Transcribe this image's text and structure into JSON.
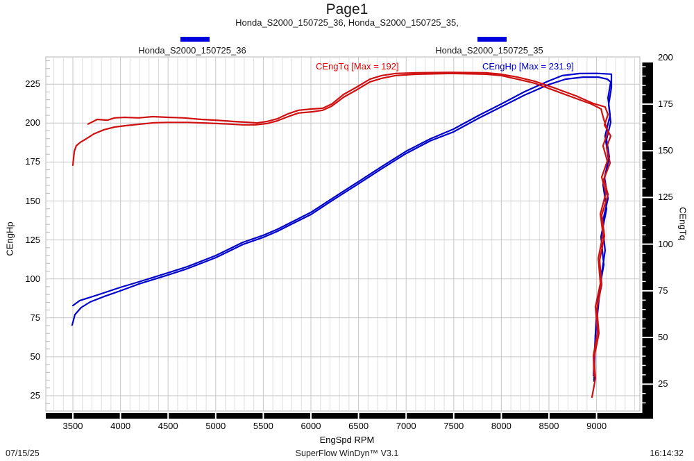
{
  "page": {
    "title": "Page1",
    "subtitle": "Honda_S2000_150725_36, Honda_S2000_150725_35,",
    "footer": {
      "date": "07/15/25",
      "app": "SuperFlow WinDyn™ V3.1",
      "time": "16:14:32"
    }
  },
  "legends": [
    {
      "label": "Honda_S2000_150725_36",
      "color": "#0000dd"
    },
    {
      "label": "Honda_S2000_150725_35",
      "color": "#0000dd"
    }
  ],
  "annotations": [
    {
      "text": "CEngTq [Max = 192]",
      "color": "#e00000"
    },
    {
      "text": "CEngHp [Max = 231.9]",
      "color": "#0000cc"
    }
  ],
  "chart_data": {
    "type": "line",
    "xlabel": "EngSpd RPM",
    "x_ticks": [
      3500,
      4000,
      4500,
      5000,
      5500,
      6000,
      6500,
      7000,
      7500,
      8000,
      8500,
      9000
    ],
    "x_minor_step": 100,
    "x_range": [
      3215,
      9455
    ],
    "left_axis": {
      "label": "CEngHp",
      "ticks": [
        225,
        200,
        175,
        150,
        125,
        100,
        75,
        50,
        25
      ],
      "minor_step": 5
    },
    "right_axis": {
      "label": "CEngTq",
      "ticks": [
        200,
        175,
        150,
        125,
        100,
        75,
        50,
        25
      ],
      "minor_step": 5
    },
    "colors": {
      "hp": "#0000cc",
      "tq": "#d01010",
      "grid_minor": "#dedede",
      "grid_major": "#c6c6c6",
      "frame": "#b4b4b4",
      "axis_bar": "#000000"
    },
    "series": [
      {
        "name": "Honda_S2000_150725_36 CEngHp",
        "axis": "hp",
        "color": "#0000cc",
        "max": 231.9,
        "points": [
          [
            3500,
            82.9
          ],
          [
            3573,
            86.1
          ],
          [
            3755,
            89.6
          ],
          [
            3996,
            94.5
          ],
          [
            4192,
            98.1
          ],
          [
            4499,
            103.9
          ],
          [
            4703,
            107.9
          ],
          [
            5002,
            115.0
          ],
          [
            5286,
            123.5
          ],
          [
            5497,
            127.9
          ],
          [
            5650,
            131.9
          ],
          [
            5796,
            136.4
          ],
          [
            6000,
            142.7
          ],
          [
            6233,
            152.0
          ],
          [
            6496,
            162.3
          ],
          [
            6744,
            172.1
          ],
          [
            6999,
            181.9
          ],
          [
            7254,
            189.9
          ],
          [
            7495,
            196.1
          ],
          [
            7764,
            205.0
          ],
          [
            7998,
            212.2
          ],
          [
            8245,
            220.2
          ],
          [
            8493,
            226.9
          ],
          [
            8639,
            230.5
          ],
          [
            8821,
            231.8
          ],
          [
            9003,
            231.9
          ],
          [
            9156,
            231.4
          ],
          [
            9156,
            222.9
          ],
          [
            9127,
            211.8
          ],
          [
            9149,
            200.6
          ],
          [
            9105,
            189.5
          ],
          [
            9134,
            178.3
          ],
          [
            9083,
            165.0
          ],
          [
            9120,
            151.6
          ],
          [
            9061,
            136.0
          ],
          [
            9090,
            118.2
          ],
          [
            9047,
            100.4
          ],
          [
            9018,
            82.5
          ],
          [
            8988,
            64.7
          ],
          [
            8981,
            49.1
          ],
          [
            8974,
            34.4
          ]
        ]
      },
      {
        "name": "Honda_S2000_150725_35 CEngHp",
        "axis": "hp",
        "color": "#0000cc",
        "max": 229.5,
        "points": [
          [
            3493,
            70.4
          ],
          [
            3522,
            77.1
          ],
          [
            3587,
            81.6
          ],
          [
            3682,
            85.2
          ],
          [
            3828,
            88.7
          ],
          [
            3996,
            92.3
          ],
          [
            4192,
            96.7
          ],
          [
            4499,
            102.5
          ],
          [
            4703,
            106.6
          ],
          [
            5002,
            113.7
          ],
          [
            5286,
            122.1
          ],
          [
            5497,
            126.6
          ],
          [
            5650,
            130.6
          ],
          [
            5796,
            135.1
          ],
          [
            6000,
            141.3
          ],
          [
            6233,
            150.7
          ],
          [
            6496,
            160.9
          ],
          [
            6744,
            170.7
          ],
          [
            6999,
            180.5
          ],
          [
            7254,
            188.6
          ],
          [
            7495,
            194.3
          ],
          [
            7764,
            203.2
          ],
          [
            7998,
            210.4
          ],
          [
            8245,
            218.0
          ],
          [
            8493,
            224.6
          ],
          [
            8675,
            228.2
          ],
          [
            8857,
            229.5
          ],
          [
            9018,
            229.5
          ],
          [
            9113,
            228.2
          ],
          [
            9149,
            226.4
          ],
          [
            9120,
            216.2
          ],
          [
            9142,
            205.1
          ],
          [
            9090,
            191.7
          ],
          [
            9127,
            176.1
          ],
          [
            9068,
            160.5
          ],
          [
            9105,
            144.9
          ],
          [
            9047,
            127.0
          ],
          [
            9076,
            109.2
          ],
          [
            9025,
            91.4
          ],
          [
            8996,
            73.5
          ],
          [
            8981,
            55.7
          ],
          [
            8967,
            37.9
          ]
        ]
      },
      {
        "name": "Honda_S2000_150725_36 CEngTq",
        "axis": "tq",
        "color": "#d01010",
        "max": 192,
        "points": [
          [
            3660,
            164.3
          ],
          [
            3755,
            166.8
          ],
          [
            3864,
            166.4
          ],
          [
            3937,
            167.6
          ],
          [
            4047,
            167.9
          ],
          [
            4192,
            167.6
          ],
          [
            4338,
            168.3
          ],
          [
            4499,
            167.9
          ],
          [
            4666,
            167.6
          ],
          [
            4849,
            166.8
          ],
          [
            5002,
            166.4
          ],
          [
            5177,
            165.7
          ],
          [
            5322,
            165.3
          ],
          [
            5432,
            164.9
          ],
          [
            5541,
            165.7
          ],
          [
            5650,
            167.2
          ],
          [
            5760,
            169.8
          ],
          [
            5869,
            171.7
          ],
          [
            6015,
            172.4
          ],
          [
            6124,
            172.8
          ],
          [
            6219,
            175.0
          ],
          [
            6343,
            180.2
          ],
          [
            6474,
            183.9
          ],
          [
            6620,
            188.4
          ],
          [
            6744,
            190.3
          ],
          [
            6889,
            191.4
          ],
          [
            7108,
            191.8
          ],
          [
            7473,
            192.0
          ],
          [
            7837,
            191.8
          ],
          [
            7998,
            191.0
          ],
          [
            8165,
            189.5
          ],
          [
            8348,
            187.3
          ],
          [
            8566,
            183.5
          ],
          [
            8785,
            179.4
          ],
          [
            8967,
            175.3
          ],
          [
            9090,
            173.5
          ],
          [
            9120,
            169.4
          ],
          [
            9083,
            163.8
          ],
          [
            9149,
            157.9
          ],
          [
            9105,
            151.9
          ],
          [
            9142,
            143.4
          ],
          [
            9076,
            134.8
          ],
          [
            9120,
            126.6
          ],
          [
            9054,
            115.5
          ],
          [
            9083,
            104.3
          ],
          [
            9032,
            91.3
          ],
          [
            9054,
            78.3
          ],
          [
            9003,
            65.2
          ],
          [
            9025,
            52.2
          ],
          [
            8974,
            39.2
          ],
          [
            8988,
            28.1
          ],
          [
            8952,
            18.0
          ]
        ]
      },
      {
        "name": "Honda_S2000_150725_35 CEngTq",
        "axis": "tq",
        "color": "#d01010",
        "max": 191.4,
        "points": [
          [
            3500,
            142.3
          ],
          [
            3507,
            146.0
          ],
          [
            3515,
            149.7
          ],
          [
            3536,
            152.7
          ],
          [
            3580,
            154.6
          ],
          [
            3639,
            156.4
          ],
          [
            3719,
            159.0
          ],
          [
            3828,
            161.3
          ],
          [
            3937,
            162.7
          ],
          [
            4061,
            163.5
          ],
          [
            4192,
            164.2
          ],
          [
            4353,
            165.0
          ],
          [
            4499,
            165.2
          ],
          [
            4703,
            165.2
          ],
          [
            4921,
            164.8
          ],
          [
            5140,
            164.3
          ],
          [
            5286,
            163.9
          ],
          [
            5417,
            163.9
          ],
          [
            5541,
            164.6
          ],
          [
            5650,
            166.1
          ],
          [
            5760,
            168.3
          ],
          [
            5869,
            170.2
          ],
          [
            6015,
            170.9
          ],
          [
            6124,
            171.7
          ],
          [
            6219,
            173.9
          ],
          [
            6343,
            178.7
          ],
          [
            6474,
            182.4
          ],
          [
            6620,
            186.9
          ],
          [
            6744,
            188.8
          ],
          [
            6889,
            190.3
          ],
          [
            7108,
            191.0
          ],
          [
            7473,
            191.4
          ],
          [
            7837,
            191.0
          ],
          [
            7998,
            190.3
          ],
          [
            8165,
            188.4
          ],
          [
            8348,
            186.2
          ],
          [
            8566,
            182.1
          ],
          [
            8785,
            178.0
          ],
          [
            8945,
            175.0
          ],
          [
            9047,
            172.4
          ],
          [
            9076,
            166.8
          ],
          [
            9120,
            160.1
          ],
          [
            9068,
            152.7
          ],
          [
            9113,
            144.5
          ],
          [
            9054,
            135.9
          ],
          [
            9098,
            127.3
          ],
          [
            9040,
            116.2
          ],
          [
            9068,
            105.1
          ],
          [
            9018,
            92.4
          ],
          [
            9040,
            79.0
          ],
          [
            8988,
            66.4
          ],
          [
            9010,
            53.0
          ],
          [
            8967,
            40.3
          ],
          [
            8974,
            29.2
          ]
        ]
      }
    ]
  }
}
